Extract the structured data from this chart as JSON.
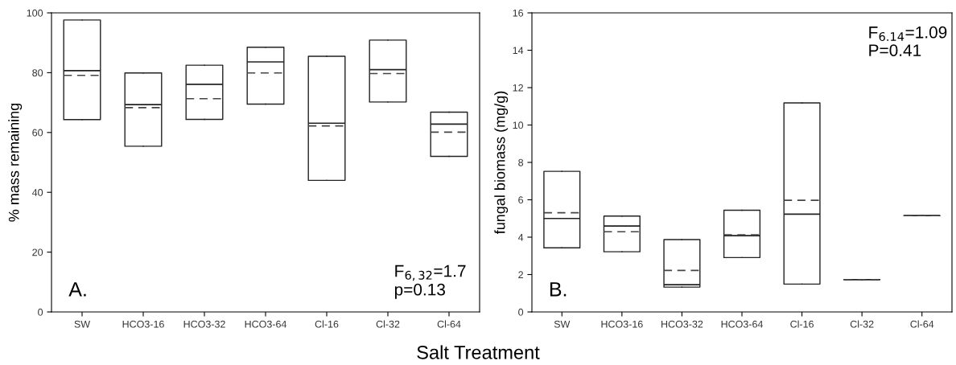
{
  "chart_data": [
    {
      "type": "box",
      "ylabel": "% mass remaining",
      "xlabel": "Salt Treatment",
      "categories": [
        "SW",
        "HCO3-16",
        "HCO3-32",
        "HCO3-64",
        "Cl-16",
        "Cl-32",
        "Cl-64"
      ],
      "ylim": [
        0,
        100
      ],
      "yticks": [
        0,
        20,
        40,
        60,
        80,
        100
      ],
      "grid": false,
      "legend": false,
      "boxes": [
        {
          "low": 64.3,
          "q1": 64.3,
          "median": 80.7,
          "q3": 97.6,
          "high": 97.6,
          "mean": 79.1
        },
        {
          "low": 55.4,
          "q1": 55.4,
          "median": 69.3,
          "q3": 79.9,
          "high": 79.9,
          "mean": 68.3
        },
        {
          "low": 64.4,
          "q1": 64.4,
          "median": 76.1,
          "q3": 82.5,
          "high": 82.5,
          "mean": 71.3
        },
        {
          "low": 69.5,
          "q1": 69.5,
          "median": 83.6,
          "q3": 88.5,
          "high": 88.5,
          "mean": 79.9
        },
        {
          "low": 44.0,
          "q1": 44.0,
          "median": 63.1,
          "q3": 85.5,
          "high": 85.5,
          "mean": 62.2
        },
        {
          "low": 70.2,
          "q1": 70.2,
          "median": 81.0,
          "q3": 90.9,
          "high": 90.9,
          "mean": 79.7
        },
        {
          "low": 52.0,
          "q1": 52.0,
          "median": 62.8,
          "q3": 66.8,
          "high": 66.8,
          "mean": 60.1
        }
      ],
      "annotations": [
        "A.",
        "F$_{6,32}$=1.7",
        "p=0.13"
      ]
    },
    {
      "type": "box",
      "ylabel": "fungal biomass (mg/g)",
      "categories": [
        "SW",
        "HCO3-16",
        "HCO3-32",
        "HCO3-64",
        "Cl-16",
        "Cl-32",
        "Cl-64"
      ],
      "ylim": [
        0,
        16
      ],
      "yticks": [
        0,
        2,
        4,
        6,
        8,
        10,
        12,
        14,
        16
      ],
      "grid": false,
      "legend": false,
      "boxes": [
        {
          "low": 3.43,
          "q1": 3.43,
          "median": 5.0,
          "q3": 7.52,
          "high": 7.52,
          "mean": 5.31
        },
        {
          "low": 3.22,
          "q1": 3.22,
          "median": 4.6,
          "q3": 5.13,
          "high": 5.13,
          "mean": 4.29
        },
        {
          "low": 1.33,
          "q1": 1.33,
          "median": 1.46,
          "q3": 3.87,
          "high": 3.87,
          "mean": 2.22
        },
        {
          "low": 2.91,
          "q1": 2.91,
          "median": 4.08,
          "q3": 5.44,
          "high": 5.44,
          "mean": 4.13
        },
        {
          "low": 1.49,
          "q1": 1.49,
          "median": 5.23,
          "q3": 11.18,
          "high": 11.18,
          "mean": 5.97
        },
        {
          "low": 1.73,
          "q1": 1.73,
          "median": 1.73,
          "q3": 1.73,
          "high": 1.73,
          "mean": 1.73
        },
        {
          "low": 5.15,
          "q1": 5.15,
          "median": 5.15,
          "q3": 5.15,
          "high": 5.15,
          "mean": 5.15
        }
      ],
      "annotations": [
        "B.",
        "F$_{6.14}$=1.09",
        "P=0.41"
      ]
    }
  ]
}
